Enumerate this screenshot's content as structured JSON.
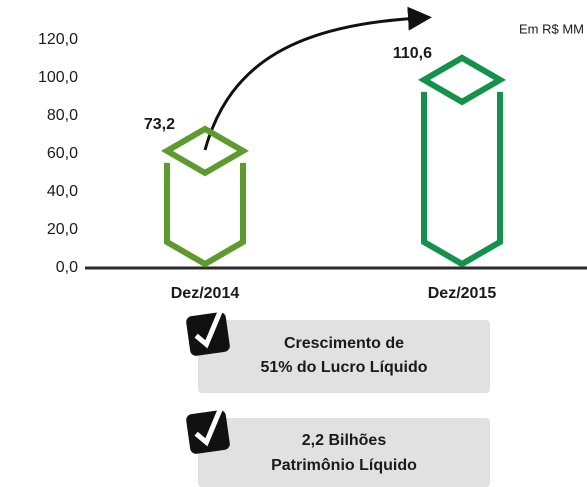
{
  "chart_data": {
    "type": "crystal-bar",
    "unit_label": "Em R$ MM",
    "categories": [
      "Dez/2014",
      "Dez/2015"
    ],
    "values": [
      73.2,
      110.6
    ],
    "value_labels": [
      "73,2",
      "110,6"
    ],
    "colors": [
      "#5e9b2f",
      "#14914a"
    ],
    "ylim": [
      0,
      120
    ],
    "yticks": [
      {
        "value": 0,
        "label": "0,0"
      },
      {
        "value": 20,
        "label": "20,0"
      },
      {
        "value": 40,
        "label": "40,0"
      },
      {
        "value": 60,
        "label": "60,0"
      },
      {
        "value": 80,
        "label": "80,0"
      },
      {
        "value": 100,
        "label": "100,0"
      },
      {
        "value": 120,
        "label": "120,0"
      }
    ]
  },
  "callouts": [
    {
      "lines": [
        "Crescimento de",
        "51% do Lucro Líquido"
      ]
    },
    {
      "lines": [
        "2,2 Bilhões",
        "Patrimônio Líquido"
      ]
    }
  ]
}
